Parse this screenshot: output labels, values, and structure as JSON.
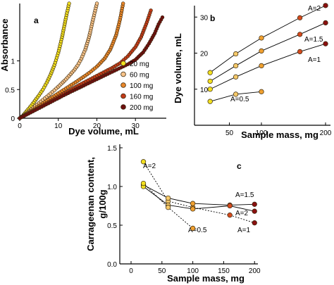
{
  "chart_data": [
    {
      "panel": "a",
      "type": "scatter",
      "xlabel": "Dye volume, mL",
      "ylabel": "Absorbance",
      "xlim": [
        0,
        38
      ],
      "ylim": [
        0,
        2
      ],
      "xticks": [
        "0",
        "10",
        "20",
        "30"
      ],
      "xtick_values": [
        0,
        10,
        20,
        30
      ],
      "yticks": [
        "0",
        "0.5",
        "1"
      ],
      "ytick_values": [
        0,
        0.5,
        1
      ],
      "legend_position": "right",
      "series": [
        {
          "name": "20 mg",
          "color": "#f2e020",
          "points": [
            [
              0,
              0
            ],
            [
              1,
              0.06
            ],
            [
              2,
              0.14
            ],
            [
              3,
              0.22
            ],
            [
              4,
              0.31
            ],
            [
              5,
              0.4
            ],
            [
              6,
              0.5
            ],
            [
              7,
              0.62
            ],
            [
              8,
              0.76
            ],
            [
              9,
              0.93
            ],
            [
              10,
              1.14
            ],
            [
              11,
              1.42
            ],
            [
              12,
              1.76
            ],
            [
              12.8,
              2.0
            ]
          ]
        },
        {
          "name": "60 mg",
          "color": "#f7c38a",
          "points": [
            [
              0,
              0
            ],
            [
              2,
              0.1
            ],
            [
              4,
              0.21
            ],
            [
              6,
              0.32
            ],
            [
              8,
              0.43
            ],
            [
              10,
              0.55
            ],
            [
              12,
              0.68
            ],
            [
              14,
              0.83
            ],
            [
              15,
              0.92
            ],
            [
              16,
              1.04
            ],
            [
              17,
              1.2
            ],
            [
              18,
              1.42
            ],
            [
              19,
              1.72
            ],
            [
              20,
              2.0
            ]
          ]
        },
        {
          "name": "100 mg",
          "color": "#e8862a",
          "points": [
            [
              0,
              0
            ],
            [
              3,
              0.13
            ],
            [
              6,
              0.26
            ],
            [
              9,
              0.39
            ],
            [
              12,
              0.52
            ],
            [
              15,
              0.65
            ],
            [
              18,
              0.79
            ],
            [
              20,
              0.9
            ],
            [
              22,
              1.04
            ],
            [
              23.5,
              1.2
            ],
            [
              25,
              1.45
            ],
            [
              26,
              1.72
            ],
            [
              26.8,
              2.0
            ]
          ]
        },
        {
          "name": "160 mg",
          "color": "#c23a18",
          "points": [
            [
              0,
              0
            ],
            [
              4,
              0.15
            ],
            [
              8,
              0.3
            ],
            [
              12,
              0.45
            ],
            [
              16,
              0.6
            ],
            [
              20,
              0.74
            ],
            [
              24,
              0.88
            ],
            [
              26,
              0.96
            ],
            [
              28,
              1.08
            ],
            [
              30,
              1.24
            ],
            [
              31.5,
              1.42
            ],
            [
              33,
              1.68
            ],
            [
              34,
              1.88
            ]
          ]
        },
        {
          "name": "200 mg",
          "color": "#6e0e0e",
          "points": [
            [
              0,
              0
            ],
            [
              4,
              0.14
            ],
            [
              8,
              0.28
            ],
            [
              12,
              0.42
            ],
            [
              16,
              0.55
            ],
            [
              20,
              0.68
            ],
            [
              24,
              0.81
            ],
            [
              28,
              0.94
            ],
            [
              30,
              1.02
            ],
            [
              32,
              1.15
            ],
            [
              33.5,
              1.3
            ],
            [
              35,
              1.48
            ],
            [
              36,
              1.64
            ],
            [
              37,
              1.76
            ]
          ]
        }
      ],
      "annotations": [
        "a"
      ]
    },
    {
      "panel": "b",
      "type": "line",
      "xlabel": "Sample mass, mg",
      "ylabel": "Dye volume, mL",
      "xlim": [
        0,
        200
      ],
      "ylim": [
        0,
        32
      ],
      "xticks": [
        "50",
        "100",
        "200"
      ],
      "xtick_values": [
        50,
        100,
        200
      ],
      "yticks": [
        "10",
        "20",
        "30"
      ],
      "ytick_values": [
        10,
        20,
        30
      ],
      "series": [
        {
          "name": "A=2",
          "points": [
            [
              20,
              14.6
            ],
            [
              60,
              19.8
            ],
            [
              100,
              24.2
            ],
            [
              160,
              29.8
            ],
            [
              200,
              33.2
            ]
          ]
        },
        {
          "name": "A=1.5",
          "points": [
            [
              20,
              12.2
            ],
            [
              60,
              16.5
            ],
            [
              100,
              20.6
            ],
            [
              160,
              25.2
            ],
            [
              200,
              28.4
            ]
          ]
        },
        {
          "name": "A=1",
          "points": [
            [
              20,
              10.0
            ],
            [
              60,
              13.4
            ],
            [
              100,
              16.5
            ],
            [
              160,
              20.4
            ],
            [
              200,
              22.6
            ]
          ]
        },
        {
          "name": "A=0.5",
          "points": [
            [
              20,
              6.6
            ],
            [
              60,
              8.6
            ],
            [
              100,
              9.3
            ]
          ]
        }
      ],
      "marker_colors": [
        "#f2e020",
        "#f5c96a",
        "#f0a030",
        "#d54a1e",
        "#8a1010"
      ],
      "annotations": [
        "b",
        "A=2",
        "A=1.5",
        "A=1",
        "A=0.5"
      ]
    },
    {
      "panel": "c",
      "type": "line",
      "xlabel": "Sample mass, mg",
      "ylabel": "Carrageenan content, g/100g",
      "ylabel_lines": [
        "Carrageenan content,",
        "g/100g"
      ],
      "xlim": [
        0,
        210
      ],
      "ylim": [
        0,
        1.5
      ],
      "xticks": [
        "0",
        "50",
        "100",
        "150",
        "200"
      ],
      "xtick_values": [
        0,
        50,
        100,
        150,
        200
      ],
      "yticks": [
        "0.0",
        "0.5",
        "1.0",
        "1.5"
      ],
      "ytick_values": [
        0,
        0.5,
        1.0,
        1.5
      ],
      "series": [
        {
          "name": "A=2",
          "dashed": true,
          "points": [
            [
              20,
              1.32
            ],
            [
              60,
              0.81
            ],
            [
              100,
              0.73
            ],
            [
              160,
              0.63
            ],
            [
              200,
              0.53
            ]
          ]
        },
        {
          "name": "A=1.5",
          "dashed": false,
          "points": [
            [
              20,
              1.02
            ],
            [
              60,
              0.85
            ],
            [
              100,
              0.78
            ],
            [
              160,
              0.76
            ],
            [
              200,
              0.77
            ]
          ]
        },
        {
          "name": "A=1",
          "dashed": false,
          "points": [
            [
              20,
              1.0
            ],
            [
              60,
              0.76
            ],
            [
              100,
              0.71
            ],
            [
              160,
              0.75
            ],
            [
              200,
              0.68
            ]
          ]
        },
        {
          "name": "A=0.5",
          "dashed": true,
          "points": [
            [
              20,
              1.04
            ],
            [
              60,
              0.73
            ],
            [
              100,
              0.46
            ]
          ]
        }
      ],
      "marker_colors": [
        "#f2e020",
        "#f5c96a",
        "#f0a030",
        "#d54a1e",
        "#8a1010"
      ],
      "annotations": [
        "c",
        "A=2",
        "A=1.5",
        "A=2",
        "A=1",
        "A=0.5"
      ]
    }
  ]
}
